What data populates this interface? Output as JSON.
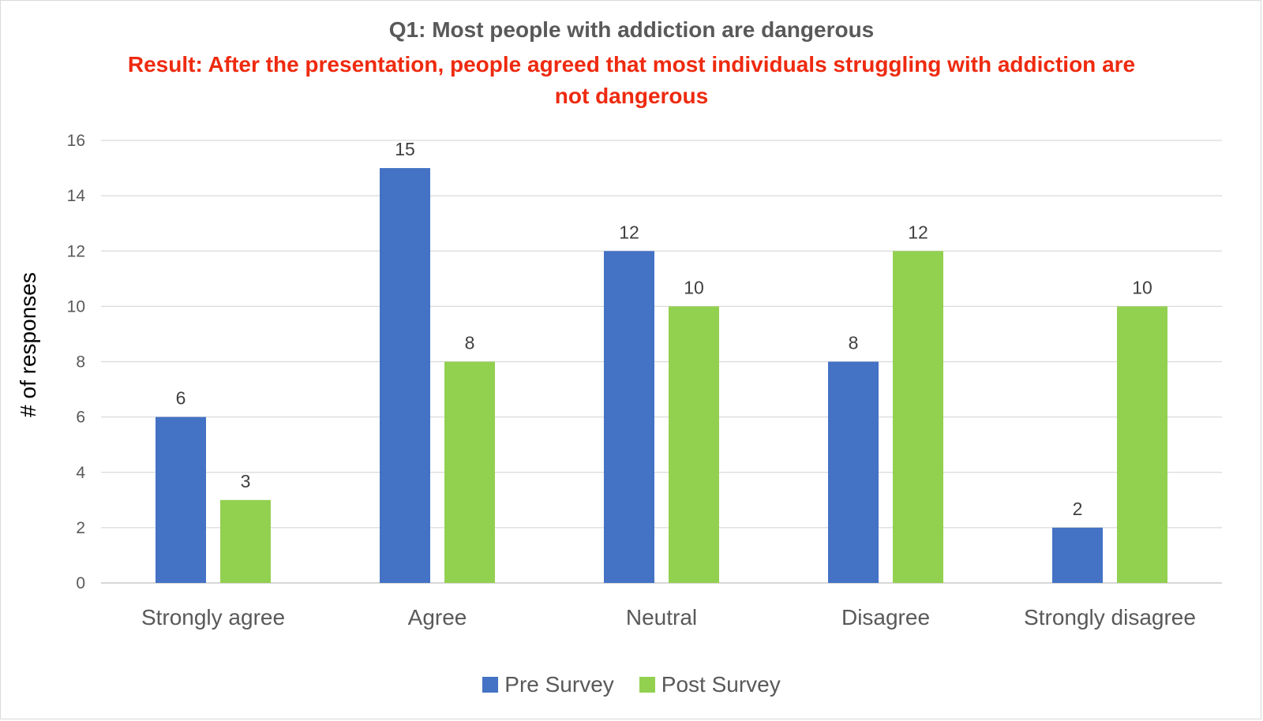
{
  "chart_data": {
    "type": "bar",
    "title": "Q1: Most people with addiction are dangerous",
    "subtitle": "Result: After the presentation, people agreed that most individuals struggling with addiction are not dangerous",
    "xlabel": "",
    "ylabel": "# of responses",
    "ylim": [
      0,
      16
    ],
    "yticks": [
      0,
      2,
      4,
      6,
      8,
      10,
      12,
      14,
      16
    ],
    "grid": true,
    "legend_position": "bottom",
    "categories": [
      "Strongly agree",
      "Agree",
      "Neutral",
      "Disagree",
      "Strongly disagree"
    ],
    "series": [
      {
        "name": "Pre Survey",
        "color": "#4472c4",
        "values": [
          6,
          15,
          12,
          8,
          2
        ]
      },
      {
        "name": "Post Survey",
        "color": "#92d050",
        "values": [
          3,
          8,
          10,
          12,
          10
        ]
      }
    ],
    "data_labels": true
  }
}
